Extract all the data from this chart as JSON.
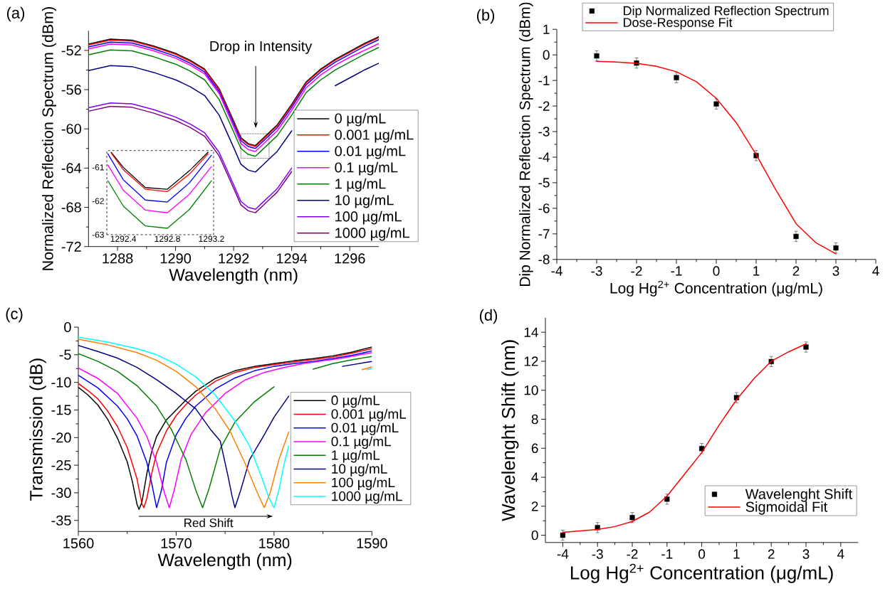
{
  "chart_data": [
    {
      "type": "line",
      "xlabel": "Wavelength (nm)",
      "ylabel": "Normalized Reflection Spectrum (dBm)",
      "xlim": [
        1287,
        1297
      ],
      "ylim": [
        -72,
        -50
      ],
      "xticks": [
        1288,
        1290,
        1292,
        1294,
        1296
      ],
      "yticks": [
        -72,
        -68,
        -64,
        -60,
        -56,
        -52
      ],
      "legend": "right",
      "annotations": [
        "(a)",
        "Drop in Intensity"
      ],
      "series": [
        {
          "name": "0 µg/mL",
          "color": "#000000",
          "x": [
            1287,
            1287.75,
            1288.5,
            1289.25,
            1290,
            1290.5,
            1291,
            1291.5,
            1292,
            1292.25,
            1292.5,
            1292.75,
            1293,
            1293.25,
            1293.5,
            1294,
            1294.5,
            1295,
            1295.5,
            1296,
            1296.5,
            1297
          ],
          "values": [
            -51.35,
            -50.85,
            -50.95,
            -51.55,
            -52.3,
            -53.0,
            -53.9,
            -55.9,
            -59.2,
            -60.9,
            -61.5,
            -61.7,
            -61.0,
            -60.3,
            -59.6,
            -57.5,
            -55.2,
            -53.9,
            -52.9,
            -52.1,
            -51.3,
            -50.6
          ]
        },
        {
          "name": "0.001 µg/mL",
          "color": "#ff0000",
          "x": [
            1287,
            1287.75,
            1288.5,
            1289.25,
            1290,
            1290.5,
            1291,
            1291.5,
            1292,
            1292.25,
            1292.5,
            1292.75,
            1293,
            1293.25,
            1293.5,
            1294,
            1294.5,
            1295,
            1295.5,
            1296,
            1296.5,
            1297
          ],
          "values": [
            -51.45,
            -50.95,
            -51.05,
            -51.65,
            -52.4,
            -53.1,
            -54.0,
            -56.0,
            -59.3,
            -61.0,
            -61.6,
            -61.8,
            -61.1,
            -60.4,
            -59.7,
            -57.6,
            -55.3,
            -54.0,
            -53.0,
            -52.2,
            -51.4,
            -50.7
          ]
        },
        {
          "name": "0.01 µg/mL",
          "color": "#0000ff",
          "x": [
            1287,
            1287.75,
            1288.5,
            1289.25,
            1290,
            1290.5,
            1291,
            1291.5,
            1292,
            1292.25,
            1292.5,
            1292.75,
            1293,
            1293.25,
            1293.5,
            1294,
            1294.5,
            1295,
            1295.5,
            1296,
            1296.5,
            1297
          ],
          "values": [
            -51.65,
            -51.15,
            -51.25,
            -51.85,
            -52.6,
            -53.3,
            -54.2,
            -56.2,
            -59.5,
            -61.2,
            -61.8,
            -62.0,
            -61.3,
            -60.6,
            -59.9,
            -57.8,
            -55.5,
            -54.2,
            -53.2,
            -52.4,
            -51.6,
            -50.9
          ]
        },
        {
          "name": "0.1 µg/mL",
          "color": "#ff00ff",
          "x": [
            1287,
            1287.75,
            1288.5,
            1289.25,
            1290,
            1290.5,
            1291,
            1291.5,
            1292,
            1292.25,
            1292.5,
            1292.75,
            1293,
            1293.25,
            1293.5,
            1294,
            1294.5,
            1295,
            1295.5,
            1296,
            1296.5,
            1297
          ],
          "values": [
            -51.85,
            -51.35,
            -51.45,
            -52.05,
            -52.8,
            -53.5,
            -54.4,
            -56.4,
            -59.8,
            -61.5,
            -62.1,
            -62.3,
            -61.6,
            -60.9,
            -60.2,
            -58.1,
            -55.8,
            -54.5,
            -53.5,
            -52.7,
            -52.0,
            -51.3
          ]
        },
        {
          "name": "1 µg/mL",
          "color": "#008000",
          "x": [
            1287,
            1287.75,
            1288.5,
            1289.25,
            1290,
            1290.5,
            1291,
            1291.5,
            1292,
            1292.25,
            1292.5,
            1292.75,
            1293,
            1293.25,
            1293.5,
            1294,
            1294.5,
            1295,
            1295.5,
            1296,
            1296.5,
            1297
          ],
          "values": [
            -52.45,
            -51.95,
            -52.05,
            -52.65,
            -53.4,
            -54.1,
            -55.0,
            -57.0,
            -60.3,
            -62.0,
            -62.6,
            -62.8,
            -62.1,
            -61.4,
            -60.7,
            -58.6,
            -56.3,
            -55.0,
            -54.0,
            -53.2,
            -52.4,
            -51.7
          ]
        },
        {
          "name": "10 µg/mL",
          "color": "#000080",
          "x": [
            1287,
            1287.75,
            1288.5,
            1289.25,
            1290,
            1290.5,
            1291,
            1291.5,
            1292,
            1292.25,
            1292.5,
            1292.75,
            1293,
            1293.25,
            1293.5,
            1294,
            1294.5,
            1295,
            1295.5,
            1296,
            1296.5,
            1297
          ],
          "values": [
            -54.05,
            -53.55,
            -53.65,
            -54.25,
            -55.0,
            -55.7,
            -56.6,
            -58.6,
            -61.9,
            -63.6,
            -64.2,
            -64.4,
            -63.7,
            -63.0,
            -62.3,
            -60.2,
            null,
            null,
            -55.6,
            -54.8,
            -54.0,
            -53.3
          ]
        },
        {
          "name": "100 µg/mL",
          "color": "#8000ff",
          "x": [
            1287,
            1287.75,
            1288.5,
            1289.25,
            1290,
            1290.5,
            1291,
            1291.5,
            1292,
            1292.25,
            1292.5,
            1292.75,
            1293,
            1293.25,
            1293.5,
            1294
          ],
          "values": [
            -57.85,
            -57.35,
            -57.45,
            -58.05,
            -58.8,
            -59.5,
            -60.4,
            -62.4,
            -65.7,
            -67.4,
            -68.0,
            -68.2,
            -67.5,
            -66.8,
            -66.1,
            -64.0
          ]
        },
        {
          "name": "1000 µg/mL",
          "color": "#800080",
          "x": [
            1287,
            1287.75,
            1288.5,
            1289.25,
            1290,
            1290.5,
            1291,
            1291.5,
            1292,
            1292.25,
            1292.5,
            1292.75,
            1293,
            1293.25,
            1293.5,
            1294
          ],
          "values": [
            -58.2,
            -57.7,
            -57.8,
            -58.4,
            -59.15,
            -59.85,
            -60.75,
            -62.75,
            -66.05,
            -67.75,
            -68.35,
            -68.55,
            -67.85,
            -67.15,
            -66.45,
            -64.35
          ]
        }
      ]
    },
    {
      "type": "line",
      "xlim": [
        1292.25,
        1293.22
      ],
      "ylim": [
        -63,
        -60.5
      ],
      "xticks": [
        1292.4,
        1292.8,
        1293.2
      ],
      "yticks": [
        -63,
        -62,
        -61
      ],
      "series": [
        {
          "color": "#000000",
          "x": [
            1292.29,
            1292.4,
            1292.6,
            1292.8,
            1293.0,
            1293.17
          ],
          "values": [
            -60.55,
            -61.0,
            -61.6,
            -61.65,
            -61.1,
            -60.55
          ]
        },
        {
          "color": "#ff0000",
          "x": [
            1292.29,
            1292.4,
            1292.6,
            1292.8,
            1293.0,
            1293.17
          ],
          "values": [
            -60.57,
            -61.07,
            -61.65,
            -61.72,
            -61.2,
            -60.6
          ]
        },
        {
          "color": "#0000ff",
          "x": [
            1292.26,
            1292.4,
            1292.6,
            1292.8,
            1293.0,
            1293.2
          ],
          "values": [
            -60.6,
            -61.37,
            -61.97,
            -62.03,
            -61.46,
            -60.64
          ]
        },
        {
          "color": "#ff00ff",
          "x": [
            1292.26,
            1292.4,
            1292.6,
            1292.8,
            1293.0,
            1293.2
          ],
          "values": [
            -60.93,
            -61.68,
            -62.27,
            -62.35,
            -61.8,
            -60.98
          ]
        },
        {
          "color": "#008000",
          "x": [
            1292.26,
            1292.4,
            1292.6,
            1292.8,
            1293.0,
            1293.2
          ],
          "values": [
            -61.4,
            -62.15,
            -62.74,
            -62.81,
            -62.25,
            -61.4
          ]
        }
      ]
    },
    {
      "type": "scatter",
      "xlabel": "Log Hg$^{2+}$ Concentration (μg/mL)",
      "ylabel": "Dip Normalized  Reflection Spectrum (dBm)",
      "xlim": [
        -4,
        4
      ],
      "ylim": [
        -8,
        1
      ],
      "xticks": [
        -4,
        -3,
        -2,
        -1,
        0,
        1,
        2,
        3,
        4
      ],
      "yticks": [
        -8,
        -7,
        -6,
        -5,
        -4,
        -3,
        -2,
        -1,
        0,
        1
      ],
      "legend": "top",
      "annotations": [
        "(b)"
      ],
      "series": [
        {
          "name": "Dip Normalized  Reflection Spectrum",
          "type": "scatter",
          "marker": "square",
          "color": "#000000",
          "x": [
            -3,
            -2,
            -1,
            0,
            1,
            2,
            3
          ],
          "values": [
            -0.04,
            -0.32,
            -0.89,
            -1.92,
            -3.94,
            -7.1,
            -7.55
          ],
          "errors": [
            0.2,
            0.2,
            0.2,
            0.2,
            0.2,
            0.2,
            0.2
          ]
        },
        {
          "name": "Dose-Response Fit",
          "type": "line",
          "color": "#ff0000",
          "x": [
            -3,
            -2.5,
            -2,
            -1.5,
            -1,
            -0.5,
            0,
            0.5,
            1,
            1.5,
            2,
            2.5,
            3
          ],
          "values": [
            -0.25,
            -0.28,
            -0.33,
            -0.45,
            -0.66,
            -1.05,
            -1.7,
            -2.65,
            -3.9,
            -5.3,
            -6.6,
            -7.35,
            -7.78
          ]
        }
      ]
    },
    {
      "type": "line",
      "xlabel": "Wavelength (nm)",
      "ylabel": "Transmission (dB)",
      "xlim": [
        1560,
        1590
      ],
      "ylim": [
        -37,
        0
      ],
      "xticks": [
        1560,
        1570,
        1580,
        1590
      ],
      "yticks": [
        -35,
        -30,
        -25,
        -20,
        -15,
        -10,
        -5,
        0
      ],
      "legend": "right",
      "annotations": [
        "(c)",
        "Red Shift"
      ],
      "series": [
        {
          "name": "0 µg/mL",
          "color": "#000000",
          "x": [
            1560,
            1561,
            1562,
            1563,
            1564,
            1565,
            1565.5,
            1566,
            1566.2,
            1566.5,
            1567,
            1567.5,
            1568,
            1569,
            1570,
            1571,
            1572,
            1574,
            1576,
            1578,
            1580,
            1582,
            1584,
            1586,
            1588,
            1590
          ],
          "values": [
            -10.9,
            -12.3,
            -14.1,
            -16.7,
            -20.1,
            -24.4,
            -27.8,
            -32.1,
            -33.0,
            -31.7,
            -26.5,
            -22.5,
            -19.8,
            -16.8,
            -15.0,
            -13.2,
            -11.6,
            -9.3,
            -7.9,
            -7.1,
            -6.6,
            -6.1,
            -5.7,
            -5.2,
            -4.5,
            -3.6
          ]
        },
        {
          "name": "0.001 µg/mL",
          "color": "#ff0000",
          "x": [
            1560,
            1561,
            1562,
            1563,
            1564,
            1565,
            1566,
            1566.5,
            1566.7,
            1567,
            1567.5,
            1568,
            1569,
            1570,
            1571,
            1572,
            1574,
            1576,
            1578,
            1580,
            1582,
            1584,
            1586,
            1588,
            1590
          ],
          "values": [
            -10.2,
            -11.5,
            -13.0,
            -15.2,
            -18.0,
            -21.8,
            -27.5,
            -32.0,
            -32.7,
            -31.0,
            -26.5,
            -22.8,
            -18.8,
            -16.0,
            -14.0,
            -12.3,
            -9.8,
            -8.2,
            -7.3,
            -6.8,
            -6.3,
            -5.9,
            -5.4,
            -4.7,
            -3.9
          ]
        },
        {
          "name": "0.01 µg/mL",
          "color": "#0000ff",
          "x": [
            1560,
            1562,
            1564,
            1565,
            1566,
            1567,
            1567.5,
            1568,
            1568.5,
            1569,
            1570,
            1571,
            1572,
            1574,
            1576,
            1578,
            1580,
            1582,
            1584,
            1586,
            1588,
            1590
          ],
          "values": [
            -8.7,
            -11.0,
            -14.3,
            -16.6,
            -19.7,
            -24.5,
            -28.3,
            -32.7,
            -29.5,
            -24.5,
            -19.5,
            -16.5,
            -14.3,
            -11.2,
            -9.2,
            -7.9,
            -7.1,
            -6.6,
            -6.2,
            -5.7,
            -5.1,
            -4.3
          ]
        },
        {
          "name": "0.1 µg/mL",
          "color": "#ff00ff",
          "x": [
            1560,
            1562,
            1564,
            1566,
            1567,
            1568,
            1568.8,
            1569.3,
            1569.8,
            1570.5,
            1571.5,
            1573,
            1575,
            1577,
            1579,
            1581,
            1583,
            1585,
            1587,
            1590
          ],
          "values": [
            -7.4,
            -9.3,
            -12.0,
            -16.5,
            -19.8,
            -24.5,
            -30.0,
            -32.7,
            -29.5,
            -24.0,
            -19.5,
            -15.5,
            -12.0,
            -9.6,
            -8.2,
            -7.3,
            -6.6,
            -6.1,
            -5.6,
            -4.6
          ]
        },
        {
          "name": "1 µg/mL",
          "color": "#008000",
          "x": [
            1560,
            1562,
            1564,
            1566,
            1568,
            1569.5,
            1571,
            1572,
            1572.7,
            1573.4,
            1574.5,
            1576,
            1578,
            1580,
            1582,
            1584,
            1586,
            1588,
            1590
          ],
          "values": [
            -4.8,
            -6.2,
            -8.0,
            -10.6,
            -14.3,
            -18.5,
            -24.0,
            -29.5,
            -32.7,
            -29.0,
            -22.0,
            -17.2,
            -13.5,
            -10.8,
            null,
            -7.6,
            -6.6,
            -5.9,
            -5.3
          ]
        },
        {
          "name": "10 µg/mL",
          "color": "#000080",
          "x": [
            1560,
            1562,
            1564,
            1566,
            1568,
            1570,
            1572,
            1573.5,
            1574.5,
            1575.3,
            1575.7,
            1576,
            1576.6,
            1577.5,
            1579,
            1580,
            1581.5,
            1583,
            1585,
            1587,
            1588,
            1590
          ],
          "values": [
            -3.3,
            -4.4,
            -5.6,
            -7.3,
            -9.5,
            -12.0,
            -14.8,
            -18.5,
            -20.6,
            -27.0,
            -30.5,
            -32.7,
            -29.5,
            -24.0,
            -19.5,
            -16.3,
            -12.5,
            null,
            null,
            -7.1,
            -6.8,
            -6.2
          ]
        },
        {
          "name": "100 µg/mL",
          "color": "#ff8000",
          "x": [
            1560,
            1563,
            1566,
            1568,
            1570,
            1572,
            1574,
            1575.5,
            1577,
            1578.3,
            1579,
            1579.6,
            1580.5,
            1581.5,
            1585,
            1589,
            1590
          ],
          "values": [
            -2.2,
            -3.2,
            -4.6,
            -6.0,
            -8.0,
            -10.8,
            -14.8,
            -18.8,
            -24.5,
            -30.0,
            -32.7,
            -30.0,
            -24.0,
            -19.0,
            null,
            -7.7,
            -7.2
          ]
        },
        {
          "name": "1000 µg/mL",
          "color": "#00ffff",
          "x": [
            1560,
            1563,
            1566,
            1568,
            1570,
            1572,
            1574,
            1576,
            1577.5,
            1578.7,
            1579.5,
            1580,
            1580.5,
            1581,
            1581.5,
            1585,
            1589.5,
            1590
          ],
          "values": [
            -1.8,
            -2.7,
            -3.9,
            -5.0,
            -6.7,
            -9.0,
            -12.3,
            -17.0,
            -21.5,
            -27.0,
            -31.0,
            -32.7,
            -29.5,
            -25.0,
            -21.5,
            null,
            -7.7,
            -7.5
          ]
        }
      ]
    },
    {
      "type": "scatter",
      "xlabel": "Log Hg$^{2+}$ Concentration (μg/mL)",
      "ylabel": "Wavelenght Shift (nm)",
      "xlim": [
        -4.5,
        4.5
      ],
      "ylim": [
        -0.5,
        15
      ],
      "xticks": [
        -4,
        -3,
        -2,
        -1,
        0,
        1,
        2,
        3,
        4
      ],
      "yticks": [
        0,
        2,
        4,
        6,
        8,
        10,
        12,
        14
      ],
      "legend": "bottom right",
      "annotations": [
        "(d)"
      ],
      "series": [
        {
          "name": "Wavelenght Shift",
          "type": "scatter",
          "marker": "square",
          "color": "#000000",
          "x": [
            -4,
            -3,
            -2,
            -1,
            0,
            1,
            2,
            3
          ],
          "values": [
            0.0,
            0.53,
            1.22,
            2.49,
            5.98,
            9.49,
            11.98,
            12.98
          ],
          "errors": [
            0.35,
            0.35,
            0.35,
            0.35,
            0.35,
            0.35,
            0.35,
            0.35
          ]
        },
        {
          "name": "Sigmoidal Fit",
          "type": "line",
          "color": "#ff0000",
          "x": [
            -4,
            -3,
            -2.5,
            -2,
            -1.5,
            -1,
            -0.5,
            0,
            0.5,
            1,
            1.5,
            2,
            2.5,
            3
          ],
          "values": [
            0.2,
            0.4,
            0.6,
            0.95,
            1.6,
            2.7,
            4.2,
            5.7,
            7.6,
            9.35,
            10.8,
            12.0,
            12.65,
            13.2
          ]
        }
      ]
    }
  ]
}
